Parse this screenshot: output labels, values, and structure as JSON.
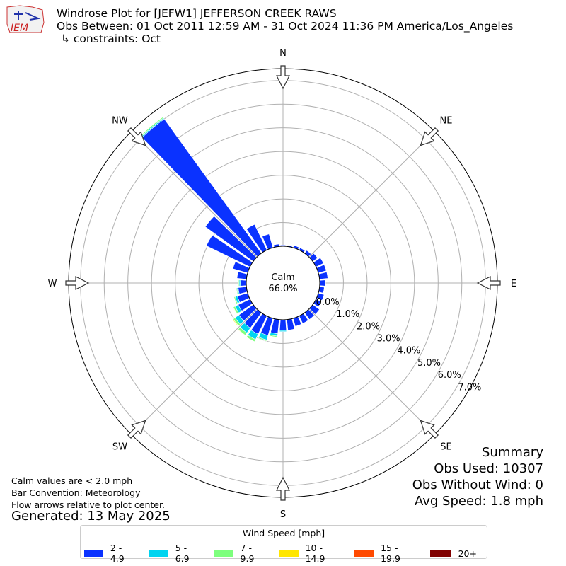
{
  "header": {
    "logo_text": "IEM",
    "title_line1": "Windrose Plot for [JEFW1] JEFFERSON CREEK RAWS",
    "title_line2": "Obs Between: 01 Oct 2011 12:59 AM - 31 Oct 2024 11:36 PM America/Los_Angeles",
    "title_line3": "↳ constraints: Oct"
  },
  "center_label": {
    "line1": "Calm",
    "line2": "66.0%"
  },
  "notes": {
    "calm_note": "Calm values are < 2.0 mph",
    "bar_convention": "Bar Convention: Meteorology",
    "flow_note": "Flow arrows relative to plot center.",
    "generated": "Generated: 13 May 2025"
  },
  "summary": {
    "title": "Summary",
    "obs_used": "Obs Used: 10307",
    "obs_without_wind": "Obs Without Wind: 0",
    "avg_speed": "Avg Speed: 1.8 mph"
  },
  "legend": {
    "title": "Wind Speed [mph]",
    "items": [
      {
        "label": "2 - 4.9",
        "color": "#0a32ff"
      },
      {
        "label": "5 - 6.9",
        "color": "#00d4f0"
      },
      {
        "label": "7 - 9.9",
        "color": "#7dff7d"
      },
      {
        "label": "10 - 14.9",
        "color": "#ffe600"
      },
      {
        "label": "15 - 19.9",
        "color": "#ff4a00"
      },
      {
        "label": "20+",
        "color": "#800000"
      }
    ]
  },
  "chart_data": {
    "type": "windrose",
    "compass_labels": [
      "N",
      "NE",
      "E",
      "SE",
      "S",
      "SW",
      "W",
      "NW"
    ],
    "radial_tick_labels": [
      "0.0%",
      "1.0%",
      "2.0%",
      "3.0%",
      "4.0%",
      "5.0%",
      "6.0%",
      "7.0%"
    ],
    "radial_range": [
      0,
      7.5
    ],
    "grid": true,
    "calm_percent": 66.0,
    "bin_width_deg": 10,
    "series_names": [
      "2 - 4.9",
      "5 - 6.9",
      "7 - 9.9",
      "10 - 14.9",
      "15 - 19.9",
      "20+"
    ],
    "directions_deg": [
      0,
      10,
      20,
      30,
      40,
      50,
      60,
      70,
      80,
      90,
      100,
      110,
      120,
      130,
      140,
      150,
      160,
      170,
      180,
      190,
      200,
      210,
      220,
      230,
      240,
      250,
      260,
      270,
      280,
      290,
      300,
      310,
      320,
      330,
      340,
      350
    ],
    "series": [
      {
        "name": "2 - 4.9",
        "values": [
          0.05,
          0.05,
          0.1,
          0.1,
          0.15,
          0.25,
          0.35,
          0.35,
          0.35,
          0.25,
          0.2,
          0.25,
          0.25,
          0.35,
          0.35,
          0.35,
          0.35,
          0.45,
          0.45,
          0.6,
          0.75,
          0.85,
          0.8,
          0.75,
          0.55,
          0.45,
          0.35,
          0.25,
          0.4,
          0.65,
          2.05,
          2.5,
          7.0,
          1.2,
          0.6,
          0.1
        ]
      },
      {
        "name": "5 - 6.9",
        "values": [
          0,
          0,
          0,
          0,
          0,
          0,
          0,
          0,
          0,
          0,
          0,
          0,
          0,
          0,
          0,
          0,
          0,
          0,
          0.05,
          0.1,
          0.2,
          0.25,
          0.25,
          0.2,
          0.15,
          0.1,
          0.05,
          0.05,
          0,
          0,
          0,
          0,
          0.05,
          0,
          0,
          0
        ]
      },
      {
        "name": "7 - 9.9",
        "values": [
          0,
          0,
          0,
          0,
          0,
          0,
          0,
          0,
          0,
          0,
          0,
          0,
          0,
          0,
          0,
          0,
          0,
          0,
          0,
          0.05,
          0.05,
          0.1,
          0.12,
          0.1,
          0.08,
          0.05,
          0.03,
          0.03,
          0,
          0,
          0,
          0,
          0.05,
          0,
          0,
          0
        ]
      },
      {
        "name": "10 - 14.9",
        "values": [
          0,
          0,
          0,
          0,
          0,
          0,
          0,
          0,
          0,
          0,
          0,
          0,
          0,
          0,
          0,
          0,
          0,
          0,
          0,
          0,
          0,
          0,
          0.02,
          0.03,
          0.02,
          0,
          0,
          0,
          0,
          0,
          0,
          0,
          0,
          0,
          0,
          0
        ]
      },
      {
        "name": "15 - 19.9",
        "values": [
          0,
          0,
          0,
          0,
          0,
          0,
          0,
          0,
          0,
          0,
          0,
          0,
          0,
          0,
          0,
          0,
          0,
          0,
          0,
          0,
          0,
          0,
          0,
          0,
          0,
          0,
          0,
          0,
          0,
          0,
          0,
          0,
          0,
          0,
          0,
          0
        ]
      },
      {
        "name": "20+",
        "values": [
          0,
          0,
          0,
          0,
          0,
          0,
          0,
          0,
          0,
          0,
          0,
          0,
          0,
          0,
          0,
          0,
          0,
          0,
          0,
          0,
          0,
          0,
          0,
          0,
          0,
          0,
          0,
          0,
          0,
          0,
          0,
          0,
          0,
          0,
          0,
          0
        ]
      }
    ]
  }
}
